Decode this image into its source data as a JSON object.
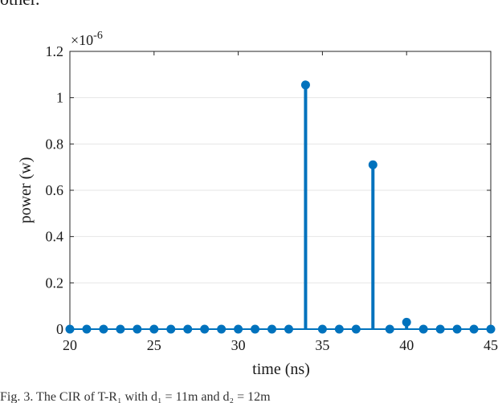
{
  "header_text": "other.",
  "caption": "Fig. 3.  The CIR of T-R₁ with d₁ = 11m and d₂ = 12m",
  "colors": {
    "series": "#0072BD",
    "axis": "#262626",
    "grid": "#e6e6e6"
  },
  "chart_data": {
    "type": "stem",
    "title": "",
    "xlabel": "time (ns)",
    "ylabel": "power (w)",
    "y_exponent_label": "×10",
    "y_exponent_power": "-6",
    "xlim": [
      20,
      45
    ],
    "ylim": [
      0,
      1.2
    ],
    "xticks": [
      20,
      25,
      30,
      35,
      40,
      45
    ],
    "yticks": [
      0,
      0.2,
      0.4,
      0.6,
      0.8,
      1,
      1.2
    ],
    "grid": "horizontal",
    "series": [
      {
        "x": [
          20,
          21,
          22,
          23,
          24,
          25,
          26,
          27,
          28,
          29,
          30,
          31,
          32,
          33,
          34,
          35,
          36,
          37,
          38,
          39,
          40,
          41,
          42,
          43,
          44,
          45
        ],
        "values": [
          0,
          0,
          0,
          0,
          0,
          0,
          0,
          0,
          0,
          0,
          0,
          0,
          0,
          0,
          1.055,
          0,
          0,
          0,
          0.71,
          0,
          0.03,
          0,
          0,
          0,
          0,
          0
        ]
      }
    ]
  }
}
